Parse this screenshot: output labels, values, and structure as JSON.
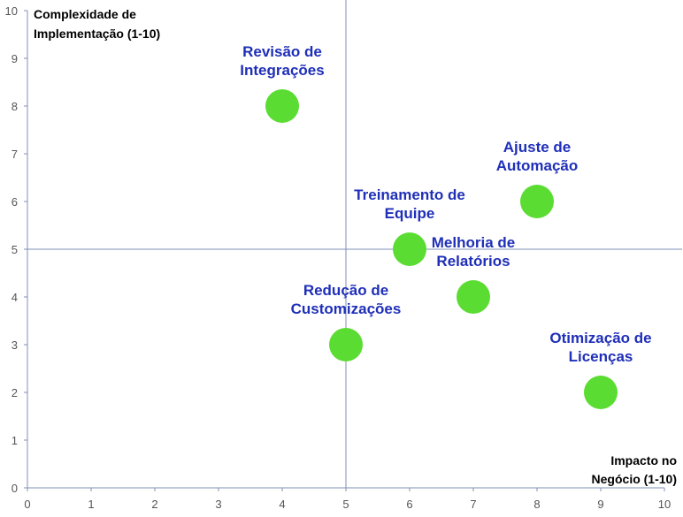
{
  "chart_data": {
    "type": "scatter",
    "title": "",
    "xlabel": [
      "Impacto no",
      "Negócio (1-10)"
    ],
    "ylabel": [
      "Complexidade de",
      "Implementação (1-10)"
    ],
    "xlim": [
      0,
      10
    ],
    "ylim": [
      0,
      10
    ],
    "xticks": [
      "0",
      "1",
      "2",
      "3",
      "4",
      "5",
      "6",
      "7",
      "8",
      "9",
      "10"
    ],
    "yticks": [
      "0",
      "1",
      "2",
      "3",
      "4",
      "5",
      "6",
      "7",
      "8",
      "9",
      "10"
    ],
    "quadrant_lines": {
      "x": 5,
      "y": 5
    },
    "grid": false,
    "marker_color": "#5ADC32",
    "label_color": "#1F2FB8",
    "axis_color": "#7F8FB5",
    "points": [
      {
        "x": 4,
        "y": 8,
        "label": [
          "Revisão de",
          "Integrações"
        ]
      },
      {
        "x": 8,
        "y": 6,
        "label": [
          "Ajuste de",
          "Automação"
        ]
      },
      {
        "x": 6,
        "y": 5,
        "label": [
          "Treinamento de",
          "Equipe"
        ]
      },
      {
        "x": 7,
        "y": 4,
        "label": [
          "Melhoria de",
          "Relatórios"
        ]
      },
      {
        "x": 5,
        "y": 3,
        "label": [
          "Redução de",
          "Customizações"
        ]
      },
      {
        "x": 9,
        "y": 2,
        "label": [
          "Otimização de",
          "Licenças"
        ]
      }
    ]
  }
}
